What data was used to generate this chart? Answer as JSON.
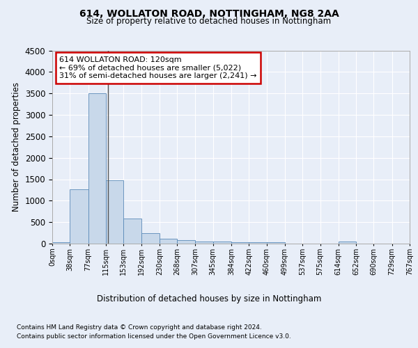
{
  "title1": "614, WOLLATON ROAD, NOTTINGHAM, NG8 2AA",
  "title2": "Size of property relative to detached houses in Nottingham",
  "xlabel": "Distribution of detached houses by size in Nottingham",
  "ylabel": "Number of detached properties",
  "footnote1": "Contains HM Land Registry data © Crown copyright and database right 2024.",
  "footnote2": "Contains public sector information licensed under the Open Government Licence v3.0.",
  "bar_edges": [
    0,
    38,
    77,
    115,
    153,
    192,
    230,
    268,
    307,
    345,
    384,
    422,
    460,
    499,
    537,
    575,
    614,
    652,
    690,
    729,
    767
  ],
  "bar_values": [
    30,
    1270,
    3500,
    1480,
    580,
    240,
    110,
    80,
    55,
    45,
    40,
    35,
    30,
    0,
    0,
    0,
    45,
    0,
    0,
    0
  ],
  "bar_color": "#c8d8ea",
  "bar_edgecolor": "#5a8ab8",
  "property_size": 120,
  "annotation_line1": "614 WOLLATON ROAD: 120sqm",
  "annotation_line2": "← 69% of detached houses are smaller (5,022)",
  "annotation_line3": "31% of semi-detached houses are larger (2,241) →",
  "annotation_box_color": "#ffffff",
  "annotation_box_edgecolor": "#cc0000",
  "vline_color": "#555555",
  "ylim": [
    0,
    4500
  ],
  "yticks": [
    0,
    500,
    1000,
    1500,
    2000,
    2500,
    3000,
    3500,
    4000,
    4500
  ],
  "bg_color": "#e8eef8",
  "plot_bg_color": "#e8eef8",
  "grid_color": "#ffffff"
}
